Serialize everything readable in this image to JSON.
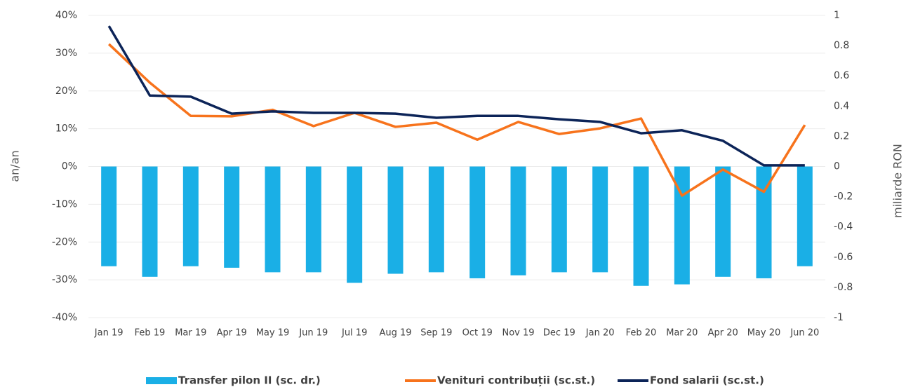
{
  "chart_data": {
    "type": "bar-line",
    "categories": [
      "Jan 19",
      "Feb 19",
      "Mar 19",
      "Apr 19",
      "May 19",
      "Jun 19",
      "Jul 19",
      "Aug 19",
      "Sep 19",
      "Oct 19",
      "Nov 19",
      "Dec 19",
      "Jan 20",
      "Feb 20",
      "Mar 20",
      "Apr 20",
      "May 20",
      "Jun 20"
    ],
    "series": [
      {
        "name": "Transfer pilon II (sc. dr.)",
        "type": "bar",
        "axis": "y2",
        "color": "#1aafe6",
        "values": [
          -0.66,
          -0.73,
          -0.66,
          -0.67,
          -0.7,
          -0.7,
          -0.77,
          -0.71,
          -0.7,
          -0.74,
          -0.72,
          -0.7,
          -0.7,
          -0.79,
          -0.78,
          -0.73,
          -0.74,
          -0.66
        ]
      },
      {
        "name": "Venituri contribuții (sc.st.)",
        "type": "line",
        "axis": "y",
        "color": "#f7731c",
        "values": [
          32.4,
          22.2,
          13.4,
          13.3,
          15,
          10.7,
          14.2,
          10.5,
          11.6,
          7.1,
          11.8,
          8.6,
          10.1,
          12.7,
          -7.7,
          -0.8,
          -6.7,
          11
        ]
      },
      {
        "name": "Fond salarii (sc.st.)",
        "type": "line",
        "axis": "y",
        "color": "#0c2458",
        "values": [
          37.2,
          18.8,
          18.5,
          14,
          14.6,
          14.2,
          14.2,
          14,
          12.9,
          13.4,
          13.4,
          12.5,
          11.8,
          8.8,
          9.6,
          6.8,
          0.3,
          0.3
        ]
      }
    ],
    "y_label": "an/an",
    "y2_label": "miliarde RON",
    "ylim": [
      -40,
      40
    ],
    "yticks": [
      {
        "value": -40,
        "label": "-40%"
      },
      {
        "value": -30,
        "label": "-30%"
      },
      {
        "value": -20,
        "label": "-20%"
      },
      {
        "value": -10,
        "label": "-10%"
      },
      {
        "value": 0,
        "label": "0%"
      },
      {
        "value": 10,
        "label": "10%"
      },
      {
        "value": 20,
        "label": "20%"
      },
      {
        "value": 30,
        "label": "30%"
      },
      {
        "value": 40,
        "label": "40%"
      }
    ],
    "y2lim": [
      -1,
      1
    ],
    "y2ticks": [
      -1,
      -0.8,
      -0.6,
      -0.4,
      -0.2,
      0,
      0.2,
      0.4,
      0.6,
      0.8,
      1
    ],
    "grid": true,
    "legend": "bottom"
  }
}
